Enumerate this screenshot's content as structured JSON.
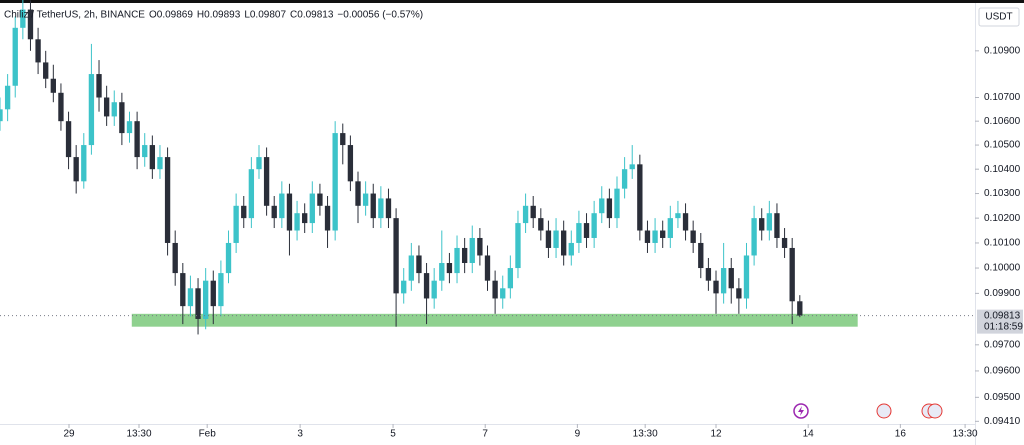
{
  "chart_data": {
    "type": "candlestick",
    "header": {
      "symbol": "Chiliz / TetherUS, 2h, BINANCE",
      "fields": [
        "O",
        "H",
        "L",
        "C"
      ],
      "change": "−0.00056 (−0.57%)"
    },
    "currency": "USDT",
    "countdown": "01:18:59",
    "log_scale": true,
    "up_color": "#3cc3c9",
    "down_color": "#2a2e39",
    "ohlc": [
      [
        0.106,
        0.107,
        0.1056,
        0.1065
      ],
      [
        0.1065,
        0.108,
        0.106,
        0.1075
      ],
      [
        0.1075,
        0.1105,
        0.107,
        0.11
      ],
      [
        0.11,
        0.1115,
        0.1095,
        0.1108
      ],
      [
        0.1108,
        0.1112,
        0.109,
        0.1095
      ],
      [
        0.1095,
        0.11,
        0.108,
        0.1085
      ],
      [
        0.1085,
        0.109,
        0.1074,
        0.1078
      ],
      [
        0.1078,
        0.1084,
        0.1068,
        0.1072
      ],
      [
        0.1072,
        0.1076,
        0.1056,
        0.106
      ],
      [
        0.106,
        0.1064,
        0.104,
        0.1045
      ],
      [
        0.1045,
        0.105,
        0.103,
        0.1035
      ],
      [
        0.1035,
        0.1055,
        0.1032,
        0.105
      ],
      [
        0.105,
        0.1093,
        0.1046,
        0.108
      ],
      [
        0.108,
        0.1086,
        0.1064,
        0.107
      ],
      [
        0.107,
        0.1075,
        0.1058,
        0.1062
      ],
      [
        0.1062,
        0.1073,
        0.1058,
        0.1068
      ],
      [
        0.1068,
        0.1072,
        0.105,
        0.1055
      ],
      [
        0.1055,
        0.1064,
        0.1051,
        0.106
      ],
      [
        0.106,
        0.1064,
        0.104,
        0.1045
      ],
      [
        0.1045,
        0.1055,
        0.1041,
        0.105
      ],
      [
        0.105,
        0.1054,
        0.1036,
        0.104
      ],
      [
        0.104,
        0.105,
        0.1036,
        0.1045
      ],
      [
        0.1045,
        0.1049,
        0.1005,
        0.101
      ],
      [
        0.101,
        0.1015,
        0.0993,
        0.0998
      ],
      [
        0.0998,
        0.1002,
        0.0978,
        0.0985
      ],
      [
        0.0985,
        0.0997,
        0.0981,
        0.0992
      ],
      [
        0.0992,
        0.0996,
        0.0974,
        0.098
      ],
      [
        0.098,
        0.1,
        0.0976,
        0.0995
      ],
      [
        0.0995,
        0.0999,
        0.0978,
        0.0985
      ],
      [
        0.0985,
        0.1003,
        0.0981,
        0.0998
      ],
      [
        0.0998,
        0.1015,
        0.0994,
        0.101
      ],
      [
        0.101,
        0.103,
        0.1006,
        0.1025
      ],
      [
        0.1025,
        0.1029,
        0.1016,
        0.102
      ],
      [
        0.102,
        0.1045,
        0.1016,
        0.104
      ],
      [
        0.104,
        0.105,
        0.1036,
        0.1045
      ],
      [
        0.1045,
        0.1049,
        0.1021,
        0.1025
      ],
      [
        0.1025,
        0.1029,
        0.1016,
        0.102
      ],
      [
        0.102,
        0.1035,
        0.1016,
        0.103
      ],
      [
        0.103,
        0.1034,
        0.1005,
        0.1015
      ],
      [
        0.1015,
        0.1027,
        0.1011,
        0.1022
      ],
      [
        0.1022,
        0.1026,
        0.1014,
        0.1018
      ],
      [
        0.1018,
        0.1035,
        0.1014,
        0.103
      ],
      [
        0.103,
        0.1034,
        0.1021,
        0.1025
      ],
      [
        0.1025,
        0.1029,
        0.1008,
        0.1015
      ],
      [
        0.1015,
        0.106,
        0.1011,
        0.1055
      ],
      [
        0.1055,
        0.1059,
        0.1042,
        0.105
      ],
      [
        0.105,
        0.1054,
        0.1031,
        0.1035
      ],
      [
        0.1035,
        0.1039,
        0.1018,
        0.1025
      ],
      [
        0.1025,
        0.1035,
        0.1021,
        0.103
      ],
      [
        0.103,
        0.1034,
        0.1016,
        0.102
      ],
      [
        0.102,
        0.1033,
        0.1016,
        0.1028
      ],
      [
        0.1028,
        0.1032,
        0.1016,
        0.102
      ],
      [
        0.102,
        0.1024,
        0.0977,
        0.099
      ],
      [
        0.099,
        0.1,
        0.0986,
        0.0995
      ],
      [
        0.0995,
        0.101,
        0.0991,
        0.1005
      ],
      [
        0.1005,
        0.1009,
        0.0994,
        0.0998
      ],
      [
        0.0998,
        0.1002,
        0.0978,
        0.0988
      ],
      [
        0.0988,
        0.1,
        0.0984,
        0.0995
      ],
      [
        0.0995,
        0.1015,
        0.0991,
        0.1002
      ],
      [
        0.1002,
        0.1006,
        0.0994,
        0.0998
      ],
      [
        0.0998,
        0.1013,
        0.0994,
        0.1008
      ],
      [
        0.1008,
        0.1012,
        0.0998,
        0.1002
      ],
      [
        0.1002,
        0.1017,
        0.0998,
        0.1012
      ],
      [
        0.1012,
        0.1016,
        0.1001,
        0.1005
      ],
      [
        0.1005,
        0.1009,
        0.0991,
        0.0995
      ],
      [
        0.0995,
        0.0999,
        0.0982,
        0.0988
      ],
      [
        0.0988,
        0.0997,
        0.0984,
        0.0992
      ],
      [
        0.0992,
        0.1005,
        0.0988,
        0.1
      ],
      [
        0.1,
        0.1023,
        0.0996,
        0.1018
      ],
      [
        0.1018,
        0.103,
        0.1014,
        0.1025
      ],
      [
        0.1025,
        0.1029,
        0.1016,
        0.102
      ],
      [
        0.102,
        0.1024,
        0.1011,
        0.1015
      ],
      [
        0.1015,
        0.1019,
        0.1004,
        0.1008
      ],
      [
        0.1008,
        0.102,
        0.1004,
        0.1015
      ],
      [
        0.1015,
        0.1019,
        0.1001,
        0.1005
      ],
      [
        0.1005,
        0.1015,
        0.1001,
        0.101
      ],
      [
        0.101,
        0.1023,
        0.1006,
        0.1018
      ],
      [
        0.1018,
        0.1022,
        0.1008,
        0.1012
      ],
      [
        0.1012,
        0.1027,
        0.1008,
        0.1022
      ],
      [
        0.1022,
        0.1033,
        0.1018,
        0.1028
      ],
      [
        0.1028,
        0.1032,
        0.1016,
        0.102
      ],
      [
        0.102,
        0.1037,
        0.1016,
        0.1032
      ],
      [
        0.1032,
        0.1045,
        0.1028,
        0.104
      ],
      [
        0.104,
        0.105,
        0.1036,
        0.1042
      ],
      [
        0.1042,
        0.1046,
        0.1011,
        0.1015
      ],
      [
        0.1015,
        0.1019,
        0.1006,
        0.101
      ],
      [
        0.101,
        0.102,
        0.1006,
        0.1015
      ],
      [
        0.1015,
        0.1019,
        0.1008,
        0.1012
      ],
      [
        0.1012,
        0.1025,
        0.1008,
        0.102
      ],
      [
        0.102,
        0.1027,
        0.1016,
        0.1022
      ],
      [
        0.1022,
        0.1026,
        0.1011,
        0.1015
      ],
      [
        0.1015,
        0.1019,
        0.1006,
        0.101
      ],
      [
        0.101,
        0.1014,
        0.0996,
        0.1
      ],
      [
        0.1,
        0.1004,
        0.0991,
        0.0995
      ],
      [
        0.0995,
        0.0999,
        0.0982,
        0.099
      ],
      [
        0.099,
        0.101,
        0.0986,
        0.1
      ],
      [
        0.1,
        0.1004,
        0.0986,
        0.0992
      ],
      [
        0.0992,
        0.0996,
        0.0982,
        0.0988
      ],
      [
        0.0988,
        0.101,
        0.0984,
        0.1005
      ],
      [
        0.1005,
        0.1025,
        0.1001,
        0.102
      ],
      [
        0.102,
        0.1024,
        0.1011,
        0.1015
      ],
      [
        0.1015,
        0.1027,
        0.1011,
        0.1022
      ],
      [
        0.1022,
        0.1026,
        0.1008,
        0.1012
      ],
      [
        0.1012,
        0.1016,
        0.1004,
        0.1008
      ],
      [
        0.1008,
        0.1012,
        0.0978,
        0.09869
      ],
      [
        0.09869,
        0.09893,
        0.09807,
        0.09813
      ]
    ],
    "zone": {
      "low": 0.0977,
      "high": 0.0982,
      "x": [
        17.3,
        112.6
      ],
      "color": "#8fd18f"
    },
    "xlim": [
      0,
      128
    ],
    "xticks": [
      {
        "value": 9.06,
        "label": "29"
      },
      {
        "value": 18.25,
        "label": "13:30"
      },
      {
        "value": 27.2,
        "label": "Feb"
      },
      {
        "value": 39.4,
        "label": "3"
      },
      {
        "value": 51.6,
        "label": "5"
      },
      {
        "value": 63.7,
        "label": "7"
      },
      {
        "value": 75.8,
        "label": "9"
      },
      {
        "value": 84.7,
        "label": "13:30"
      },
      {
        "value": 94,
        "label": "12"
      },
      {
        "value": 106.1,
        "label": "14"
      },
      {
        "value": 118.2,
        "label": "16"
      },
      {
        "value": 126.7,
        "label": "13:30"
      }
    ],
    "ylim": [
      0.094,
      0.111
    ],
    "yticks": [
      {
        "value": 0.109,
        "label": "0.10900"
      },
      {
        "value": 0.107,
        "label": "0.10700"
      },
      {
        "value": 0.106,
        "label": "0.10600"
      },
      {
        "value": 0.105,
        "label": "0.10500"
      },
      {
        "value": 0.104,
        "label": "0.10400"
      },
      {
        "value": 0.103,
        "label": "0.10300"
      },
      {
        "value": 0.102,
        "label": "0.10200"
      },
      {
        "value": 0.101,
        "label": "0.10100"
      },
      {
        "value": 0.1,
        "label": "0.10000"
      },
      {
        "value": 0.099,
        "label": "0.09900"
      },
      {
        "value": 0.097,
        "label": "0.09700"
      },
      {
        "value": 0.096,
        "label": "0.09600"
      },
      {
        "value": 0.095,
        "label": "0.09500"
      },
      {
        "value": 0.0941,
        "label": "0.09410"
      }
    ]
  }
}
